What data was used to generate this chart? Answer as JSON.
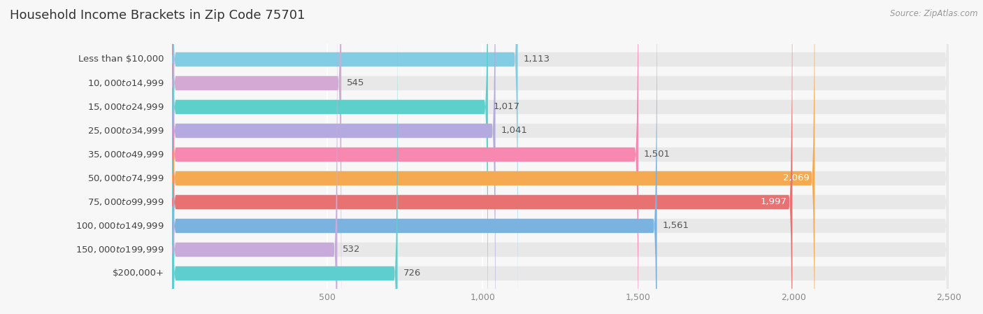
{
  "title": "Household Income Brackets in Zip Code 75701",
  "source": "Source: ZipAtlas.com",
  "categories": [
    "Less than $10,000",
    "$10,000 to $14,999",
    "$15,000 to $24,999",
    "$25,000 to $34,999",
    "$35,000 to $49,999",
    "$50,000 to $74,999",
    "$75,000 to $99,999",
    "$100,000 to $149,999",
    "$150,000 to $199,999",
    "$200,000+"
  ],
  "values": [
    1113,
    545,
    1017,
    1041,
    1501,
    2069,
    1997,
    1561,
    532,
    726
  ],
  "colors": [
    "#82cce4",
    "#d4aad4",
    "#5ed0cc",
    "#b4aadf",
    "#f788b0",
    "#f5aa52",
    "#e87272",
    "#7ab2e0",
    "#c8aadb",
    "#5ecece"
  ],
  "value_labels": [
    "1,113",
    "545",
    "1,017",
    "1,041",
    "1,501",
    "2,069",
    "1,997",
    "1,561",
    "532",
    "726"
  ],
  "xlim": [
    0,
    2500
  ],
  "xticks": [
    0,
    500,
    1000,
    1500,
    2000,
    2500
  ],
  "xtick_labels": [
    "",
    "500",
    "1,000",
    "1,500",
    "2,000",
    "2,500"
  ],
  "background_color": "#f7f7f7",
  "bar_bg_color": "#e8e8e8",
  "title_fontsize": 13,
  "label_fontsize": 9.5,
  "value_fontsize": 9.5,
  "white_label_threshold": 1600
}
